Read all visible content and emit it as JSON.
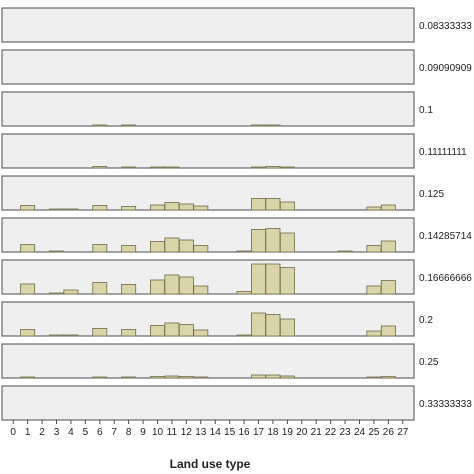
{
  "chart_data": {
    "type": "bar",
    "xlabel": "Land use type",
    "ylabel": "",
    "categories": [
      "0",
      "1",
      "2",
      "3",
      "4",
      "5",
      "6",
      "7",
      "8",
      "9",
      "10",
      "11",
      "12",
      "13",
      "14",
      "15",
      "16",
      "17",
      "18",
      "19",
      "20",
      "21",
      "22",
      "23",
      "24",
      "25",
      "26",
      "27"
    ],
    "ylim": [
      0,
      6
    ],
    "grid": false,
    "panels": [
      {
        "label": "0.08333333",
        "values": [
          0,
          0,
          0,
          0,
          0,
          0,
          0,
          0,
          0,
          0,
          0,
          0,
          0,
          0,
          0,
          0,
          0,
          0,
          0,
          0,
          0,
          0,
          0,
          0,
          0,
          0,
          0,
          0
        ]
      },
      {
        "label": "0.09090909",
        "values": [
          0,
          0,
          0,
          0,
          0,
          0,
          0,
          0,
          0,
          0,
          0,
          0,
          0,
          0,
          0,
          0,
          0,
          0,
          0,
          0,
          0,
          0,
          0,
          0,
          0,
          0,
          0,
          0
        ]
      },
      {
        "label": "0.1",
        "values": [
          0,
          0,
          0,
          0,
          0,
          0,
          0.1,
          0,
          0.1,
          0,
          0,
          0,
          0,
          0,
          0,
          0,
          0,
          0.1,
          0.1,
          0,
          0,
          0,
          0,
          0,
          0,
          0,
          0,
          0
        ]
      },
      {
        "label": "0.11111111",
        "values": [
          0,
          0,
          0,
          0,
          0,
          0,
          0.3,
          0,
          0.1,
          0,
          0.1,
          0.2,
          0,
          0,
          0,
          0,
          0,
          0.2,
          0.3,
          0.2,
          0,
          0,
          0,
          0,
          0,
          0,
          0,
          0
        ]
      },
      {
        "label": "0.125",
        "values": [
          0,
          0.9,
          0,
          0.2,
          0.2,
          0,
          0.9,
          0,
          0.7,
          0,
          1.0,
          1.5,
          1.2,
          0.8,
          0,
          0,
          0,
          2.3,
          2.3,
          1.6,
          0,
          0,
          0,
          0,
          0,
          0.6,
          1.0,
          0
        ]
      },
      {
        "label": "0.14285714",
        "values": [
          0,
          1.5,
          0,
          0.1,
          0,
          0,
          1.5,
          0,
          1.3,
          0,
          2.1,
          2.8,
          2.4,
          1.3,
          0,
          0,
          0.2,
          4.5,
          4.7,
          3.8,
          0,
          0,
          0,
          0.1,
          0,
          1.3,
          2.2,
          0
        ]
      },
      {
        "label": "0.16666666",
        "values": [
          0,
          2.0,
          0,
          0.2,
          0.8,
          0,
          2.3,
          0,
          1.9,
          0,
          2.8,
          3.8,
          3.4,
          1.6,
          0,
          0,
          0.5,
          6.0,
          6.0,
          5.3,
          0,
          0,
          0,
          0,
          0,
          1.6,
          2.7,
          0
        ]
      },
      {
        "label": "0.2",
        "values": [
          0,
          1.3,
          0,
          0.1,
          0.1,
          0,
          1.5,
          0,
          1.3,
          0,
          2.1,
          2.6,
          2.3,
          1.2,
          0,
          0,
          0.2,
          4.6,
          4.3,
          3.4,
          0,
          0,
          0,
          0,
          0,
          1.0,
          2.0,
          0
        ]
      },
      {
        "label": "0.25",
        "values": [
          0,
          0.2,
          0,
          0,
          0,
          0,
          0.2,
          0,
          0.2,
          0,
          0.3,
          0.4,
          0.3,
          0.2,
          0,
          0,
          0,
          0.6,
          0.6,
          0.4,
          0,
          0,
          0,
          0,
          0,
          0.1,
          0.3,
          0
        ]
      },
      {
        "label": "0.33333333",
        "values": [
          0,
          0,
          0,
          0,
          0,
          0,
          0,
          0,
          0,
          0,
          0,
          0,
          0,
          0,
          0,
          0,
          0,
          0,
          0,
          0,
          0,
          0,
          0,
          0,
          0,
          0,
          0,
          0
        ]
      }
    ]
  }
}
